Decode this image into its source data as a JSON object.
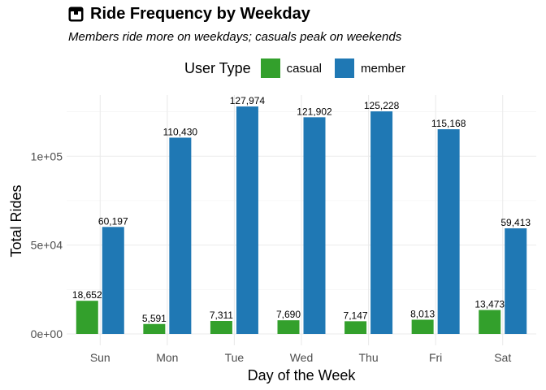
{
  "chart_data": {
    "type": "bar",
    "title": "Ride Frequency by Weekday",
    "subtitle": "Members ride more on weekdays; casuals peak on weekends",
    "xlabel": "Day of the Week",
    "ylabel": "Total Rides",
    "legend_title": "User Type",
    "legend_position": "top",
    "categories": [
      "Sun",
      "Mon",
      "Tue",
      "Wed",
      "Thu",
      "Fri",
      "Sat"
    ],
    "series": [
      {
        "name": "casual",
        "color": "#33a02c",
        "values": [
          18652,
          5591,
          7311,
          7690,
          7147,
          8013,
          13473
        ],
        "labels": [
          "18,652",
          "5,591",
          "7,311",
          "7,690",
          "7,147",
          "8,013",
          "13,473"
        ]
      },
      {
        "name": "member",
        "color": "#1f78b4",
        "values": [
          60197,
          110430,
          127974,
          121902,
          125228,
          115168,
          59413
        ],
        "labels": [
          "60,197",
          "110,430",
          "127,974",
          "121,902",
          "125,228",
          "115,168",
          "59,413"
        ]
      }
    ],
    "y_ticks": [
      0,
      50000,
      100000
    ],
    "y_tick_labels": [
      "0e+00",
      "5e+04",
      "1e+05"
    ],
    "ylim": [
      -6400,
      134400
    ],
    "grid": true
  },
  "icons": {
    "title_icon": "box-icon"
  }
}
